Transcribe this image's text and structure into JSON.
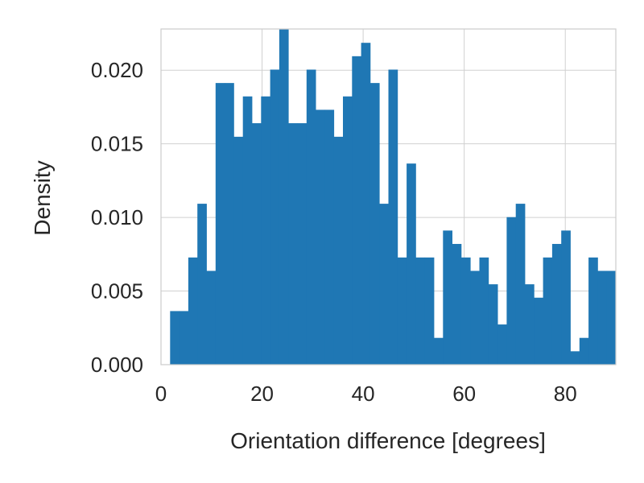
{
  "chart_data": {
    "type": "bar",
    "title": "",
    "xlabel": "Orientation difference [degrees]",
    "ylabel": "Density",
    "xlim": [
      0,
      90
    ],
    "ylim": [
      0,
      0.0228
    ],
    "grid": true,
    "color": "#1f77b4",
    "bin_start": 1.8,
    "bin_width": 1.8,
    "values": [
      0.00364,
      0.00364,
      0.00728,
      0.01093,
      0.00637,
      0.01913,
      0.01913,
      0.01548,
      0.01822,
      0.0164,
      0.01822,
      0.02004,
      0.02277,
      0.0164,
      0.0164,
      0.02004,
      0.01731,
      0.01731,
      0.01548,
      0.01822,
      0.02095,
      0.02186,
      0.01913,
      0.01093,
      0.02004,
      0.00728,
      0.01366,
      0.00728,
      0.00728,
      0.00182,
      0.00911,
      0.0082,
      0.00728,
      0.00637,
      0.00728,
      0.00546,
      0.00273,
      0.01002,
      0.01093,
      0.00546,
      0.00455,
      0.00728,
      0.0082,
      0.00911,
      0.00091,
      0.00182,
      0.00728,
      0.00637,
      0.00637
    ],
    "x_ticks": [
      {
        "value": 0,
        "label": "0"
      },
      {
        "value": 20,
        "label": "20"
      },
      {
        "value": 40,
        "label": "40"
      },
      {
        "value": 60,
        "label": "60"
      },
      {
        "value": 80,
        "label": "80"
      }
    ],
    "y_ticks": [
      {
        "value": 0,
        "label": "0.000"
      },
      {
        "value": 0.005,
        "label": "0.005"
      },
      {
        "value": 0.01,
        "label": "0.010"
      },
      {
        "value": 0.015,
        "label": "0.015"
      },
      {
        "value": 0.02,
        "label": "0.020"
      }
    ]
  }
}
